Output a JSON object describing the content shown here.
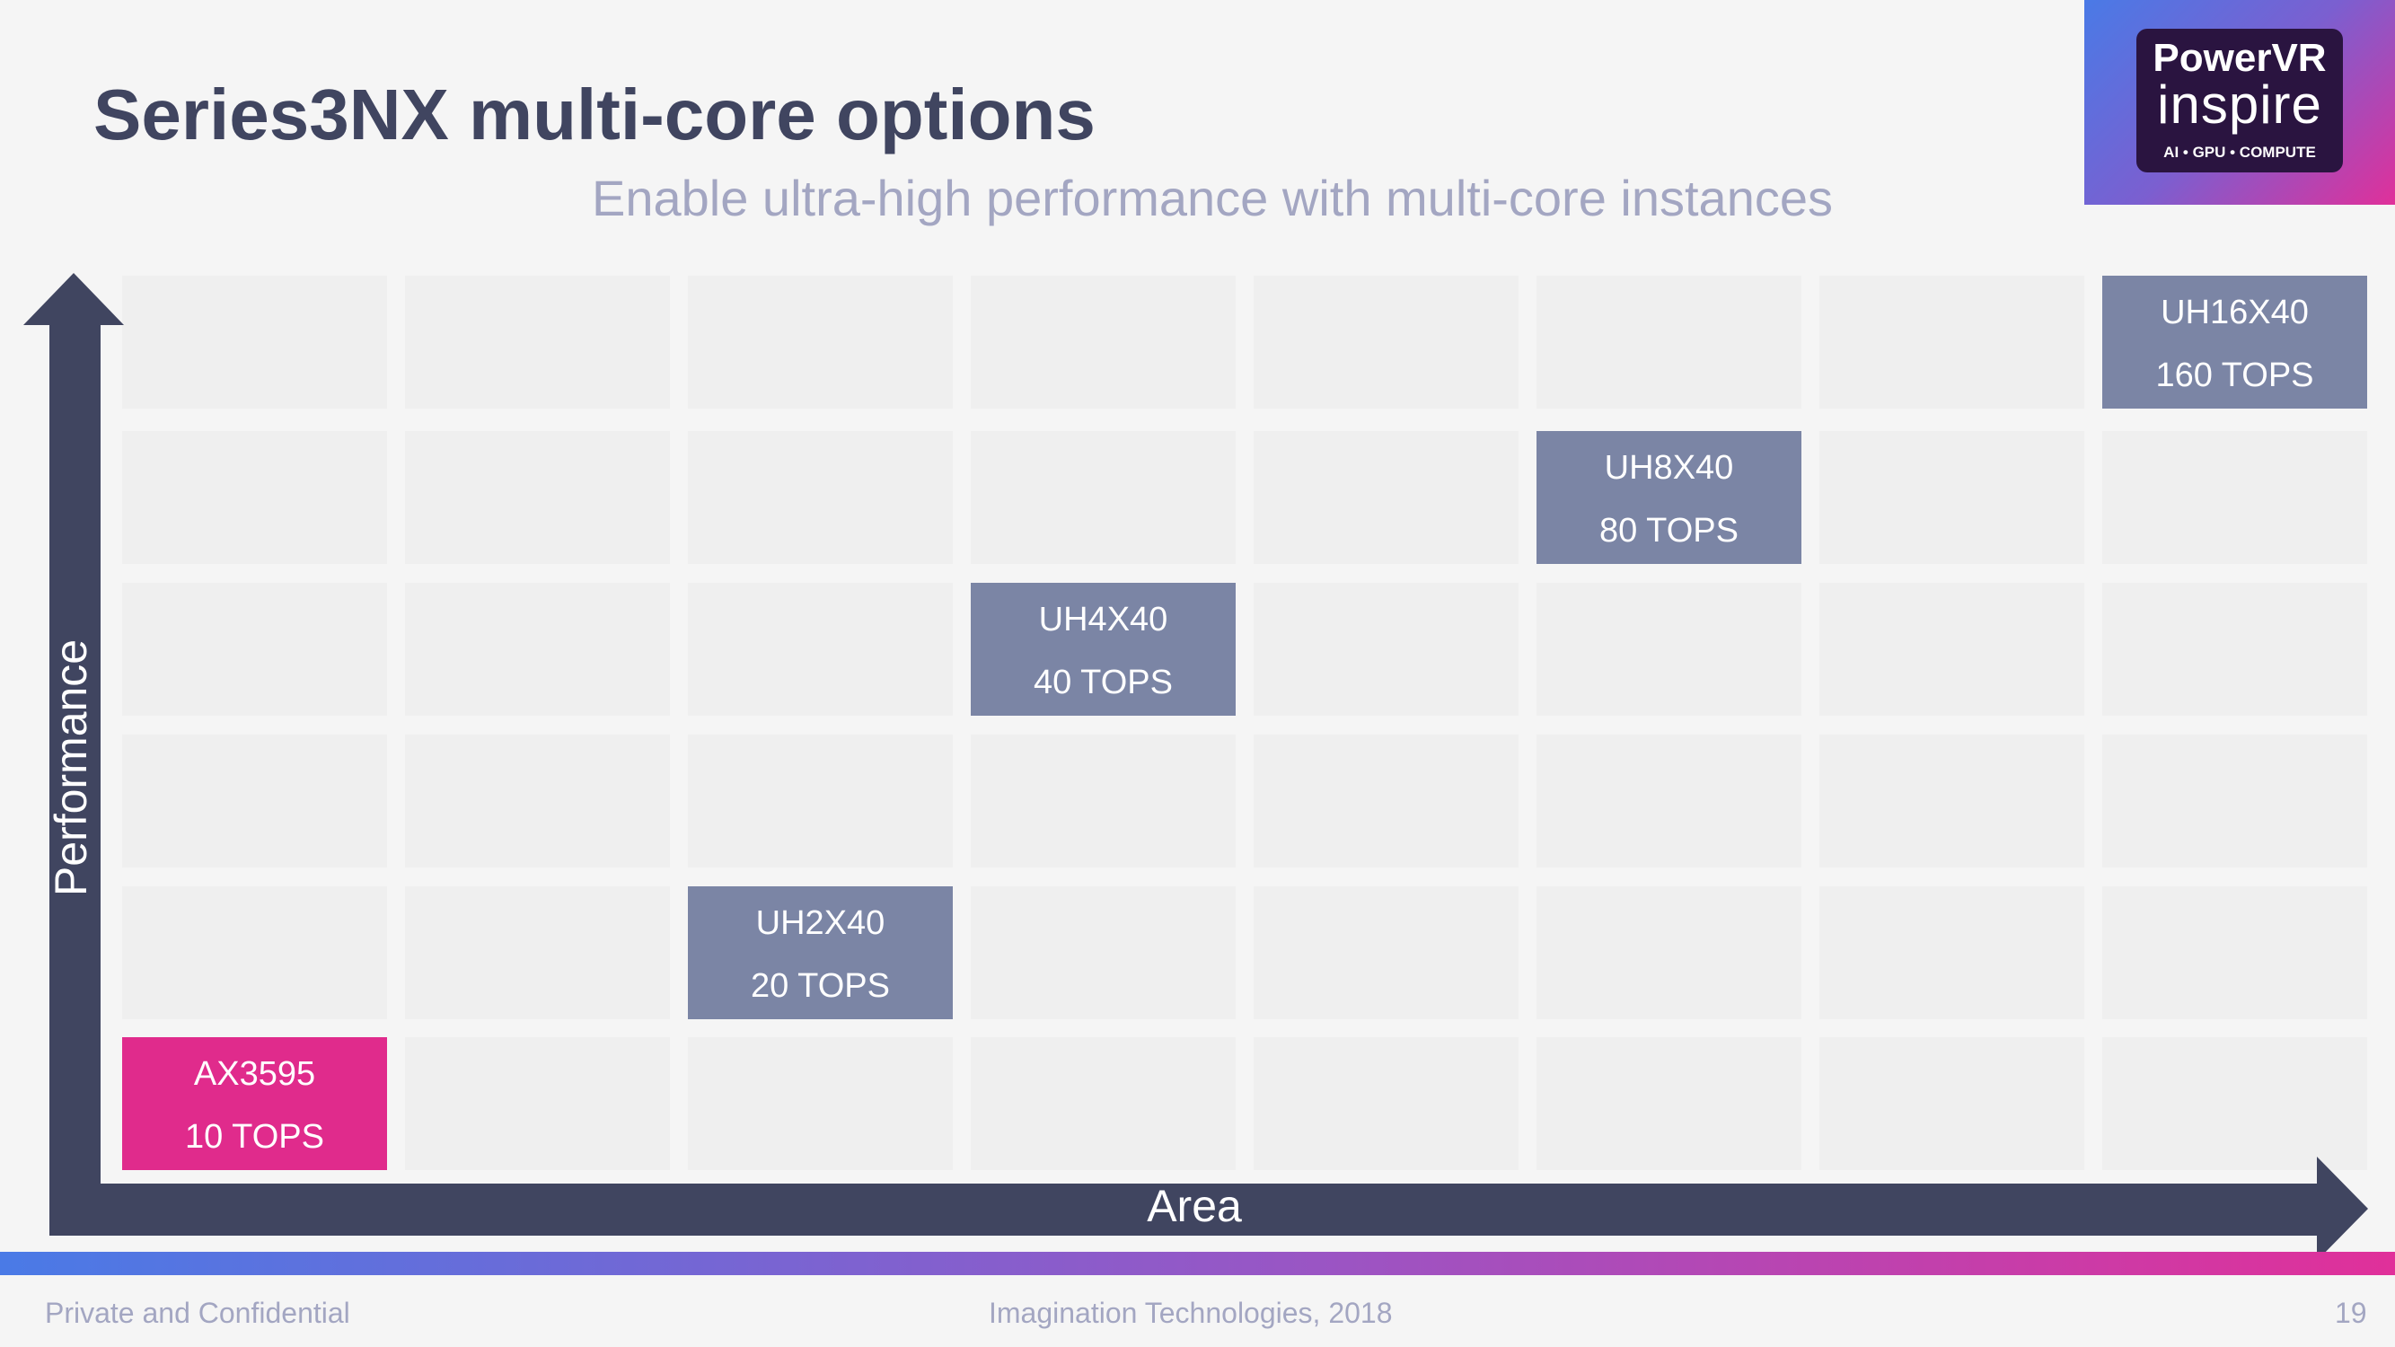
{
  "slide": {
    "title": "Series3NX multi-core options",
    "subtitle": "Enable ultra-high performance with multi-core instances"
  },
  "logo": {
    "line1": "PowerVR",
    "line2": "inspire",
    "tagline": "AI  •  GPU  •  COMPUTE"
  },
  "diagram": {
    "y_axis_label": "Performance",
    "x_axis_label": "Area",
    "colors": {
      "axis": "#404560",
      "core": "#7b85a5",
      "highlight": "#e02b8c",
      "cell": "#efefef"
    },
    "cores": [
      {
        "name": "AX3595",
        "tops": "10 TOPS",
        "highlight": true
      },
      {
        "name": "UH2X40",
        "tops": "20 TOPS",
        "highlight": false
      },
      {
        "name": "UH4X40",
        "tops": "40 TOPS",
        "highlight": false
      },
      {
        "name": "UH8X40",
        "tops": "80 TOPS",
        "highlight": false
      },
      {
        "name": "UH16X40",
        "tops": "160 TOPS",
        "highlight": false
      }
    ]
  },
  "footer": {
    "left": "Private and Confidential",
    "center": "Imagination Technologies, 2018",
    "page": "19"
  }
}
